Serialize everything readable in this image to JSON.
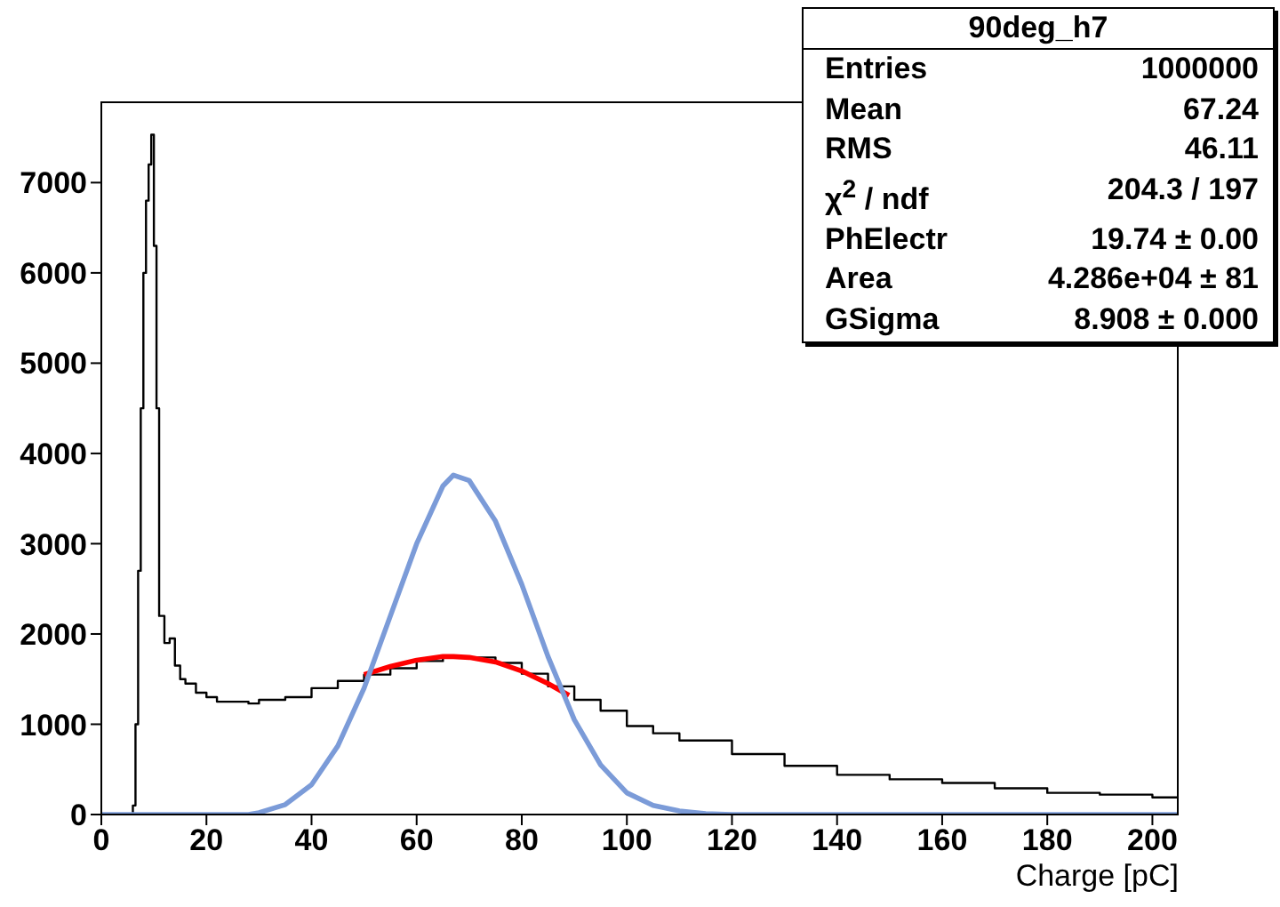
{
  "chart_data": {
    "type": "step",
    "title": "90deg_h7",
    "xlabel": "Charge [pC]",
    "xlim": [
      0,
      205
    ],
    "xticks": [
      0,
      20,
      40,
      60,
      80,
      100,
      120,
      140,
      160,
      180,
      200
    ],
    "ylim": [
      0,
      7900
    ],
    "yticks": [
      0,
      1000,
      2000,
      3000,
      4000,
      5000,
      6000,
      7000
    ],
    "grid": false,
    "legend": false,
    "marker": "none",
    "line_style": "solid",
    "annotations": [
      "Entries",
      "1000000",
      "Mean",
      "67.24",
      "RMS",
      "46.11",
      "χ$^{2}$ / ndf",
      "204.3 / 197",
      "PhElectr",
      "19.74 ± 0.00",
      "Area",
      "4.286e+04 ± 81",
      "GSigma",
      "8.908 ± 0.000"
    ],
    "series": [
      {
        "color": "#000000",
        "x": [
          0,
          5,
          6,
          6.5,
          7,
          7.5,
          8,
          8.5,
          9,
          9.5,
          10,
          10.5,
          11,
          12,
          13,
          14,
          15,
          16,
          18,
          20,
          22,
          25,
          28,
          30,
          35,
          40,
          45,
          50,
          55,
          60,
          65,
          70,
          75,
          80,
          85,
          90,
          95,
          100,
          105,
          110,
          120,
          130,
          140,
          150,
          160,
          170,
          180,
          190,
          200,
          205
        ],
        "values": [
          0,
          0,
          100,
          1000,
          2700,
          4500,
          6000,
          6800,
          7200,
          7530,
          6300,
          4500,
          2200,
          1900,
          1950,
          1650,
          1500,
          1450,
          1350,
          1300,
          1250,
          1250,
          1230,
          1270,
          1300,
          1400,
          1480,
          1550,
          1620,
          1700,
          1740,
          1740,
          1680,
          1560,
          1420,
          1270,
          1150,
          980,
          900,
          820,
          670,
          540,
          440,
          390,
          350,
          290,
          240,
          220,
          190,
          170
        ]
      },
      {
        "type": "line",
        "color": "#ff0000",
        "x": [
          50,
          55,
          60,
          65,
          67,
          70,
          75,
          80,
          85,
          89
        ],
        "values": [
          1550,
          1640,
          1710,
          1750,
          1750,
          1740,
          1690,
          1590,
          1450,
          1320
        ]
      },
      {
        "type": "line",
        "color": "#7b9bd8",
        "x": [
          0,
          28,
          30,
          35,
          40,
          45,
          50,
          55,
          60,
          65,
          67,
          70,
          75,
          80,
          85,
          90,
          95,
          100,
          105,
          110,
          115,
          120,
          205
        ],
        "values": [
          0,
          0,
          20,
          110,
          330,
          760,
          1400,
          2200,
          3000,
          3640,
          3760,
          3700,
          3250,
          2550,
          1750,
          1050,
          550,
          240,
          100,
          40,
          10,
          0,
          0
        ]
      }
    ]
  }
}
